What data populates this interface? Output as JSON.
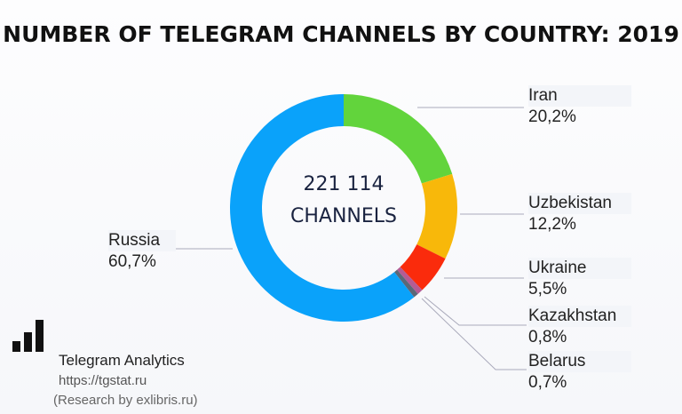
{
  "chart_data": {
    "type": "pie",
    "title": "NUMBER OF TELEGRAM CHANNELS BY COUNTRY: 2019",
    "center_label": [
      "221 114",
      "CHANNELS"
    ],
    "slices": [
      {
        "label": "Iran",
        "value": 20.2,
        "value_text": "20,2%",
        "color": "#62d43c"
      },
      {
        "label": "Uzbekistan",
        "value": 12.2,
        "value_text": "12,2%",
        "color": "#f8b80a"
      },
      {
        "label": "Ukraine",
        "value": 5.5,
        "value_text": "5,5%",
        "color": "#fa2b0c"
      },
      {
        "label": "Kazakhstan",
        "value": 0.8,
        "value_text": "0,8%",
        "color": "#b45c94"
      },
      {
        "label": "Belarus",
        "value": 0.7,
        "value_text": "0,7%",
        "color": "#5b6878"
      },
      {
        "label": "Russia",
        "value": 60.7,
        "value_text": "60,7%",
        "color": "#0aa2fa"
      }
    ]
  },
  "footer": {
    "brand": "Telegram Analytics",
    "url": "https://tgstat.ru",
    "research": "(Research by exlibris.ru)"
  }
}
